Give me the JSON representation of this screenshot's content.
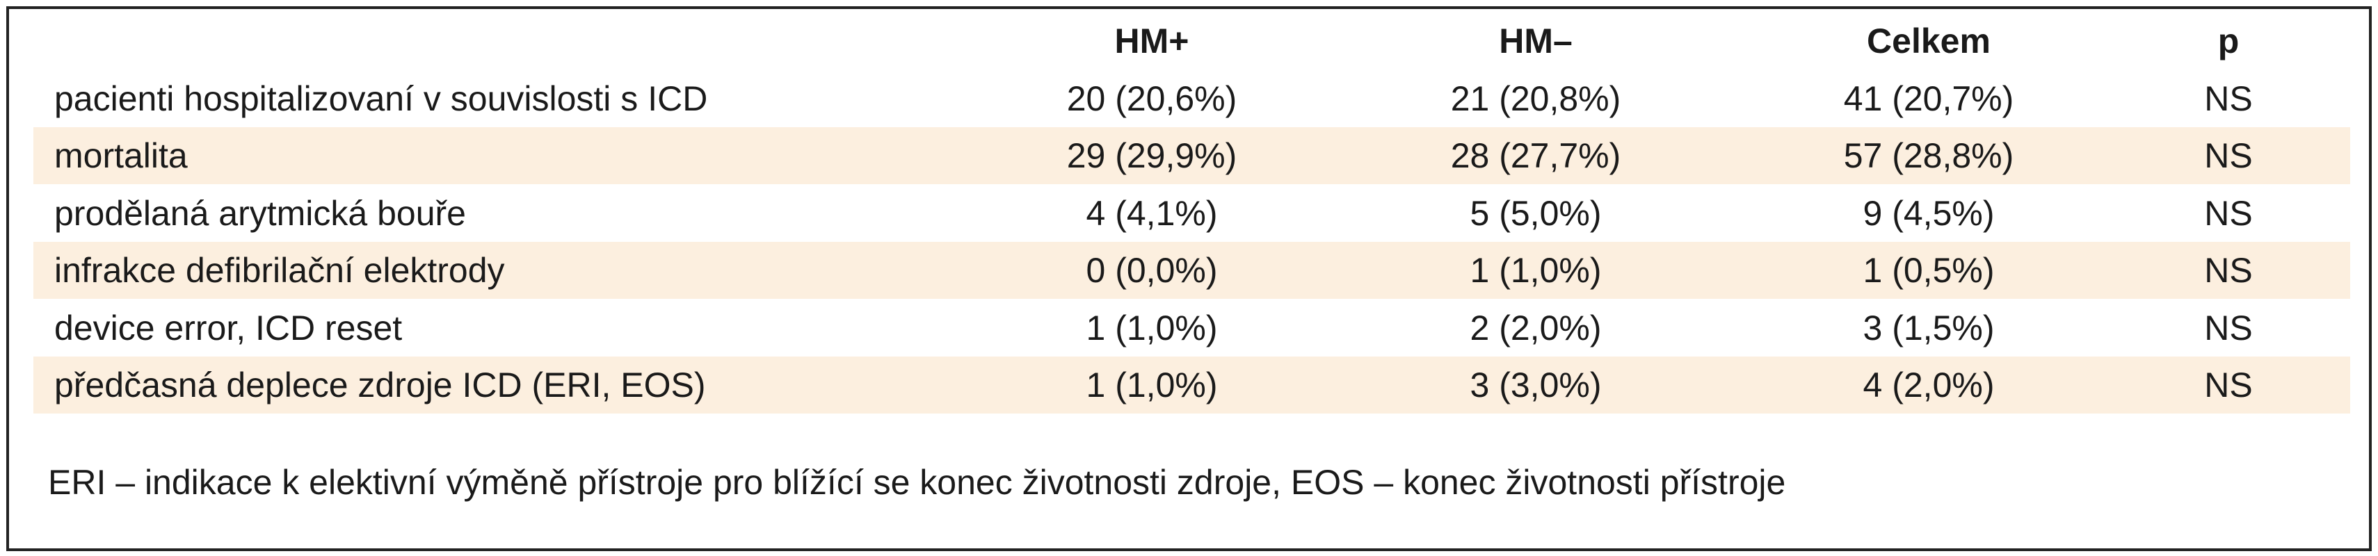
{
  "table": {
    "columns": [
      "HM+",
      "HM–",
      "Celkem",
      "p"
    ],
    "rows": [
      [
        "pacienti hospitalizovaní v souvislosti s ICD",
        "20 (20,6%)",
        "21 (20,8%)",
        "41 (20,7%)",
        "NS"
      ],
      [
        "mortalita",
        "29 (29,9%)",
        "28 (27,7%)",
        "57 (28,8%)",
        "NS"
      ],
      [
        "prodělaná arytmická bouře",
        "4 (4,1%)",
        "5 (5,0%)",
        "9 (4,5%)",
        "NS"
      ],
      [
        "infrakce defibrilační elektrody",
        "0 (0,0%)",
        "1 (1,0%)",
        "1 (0,5%)",
        "NS"
      ],
      [
        "device error, ICD reset",
        "1 (1,0%)",
        "2 (2,0%)",
        "3 (1,5%)",
        "NS"
      ],
      [
        "předčasná deplece zdroje ICD (ERI, EOS)",
        "1 (1,0%)",
        "3 (3,0%)",
        "4 (2,0%)",
        "NS"
      ]
    ],
    "footnote": "ERI – indikace k elektivní výměně přístroje pro blížící se konec životnosti zdroje, EOS – konec životnosti přístroje"
  }
}
